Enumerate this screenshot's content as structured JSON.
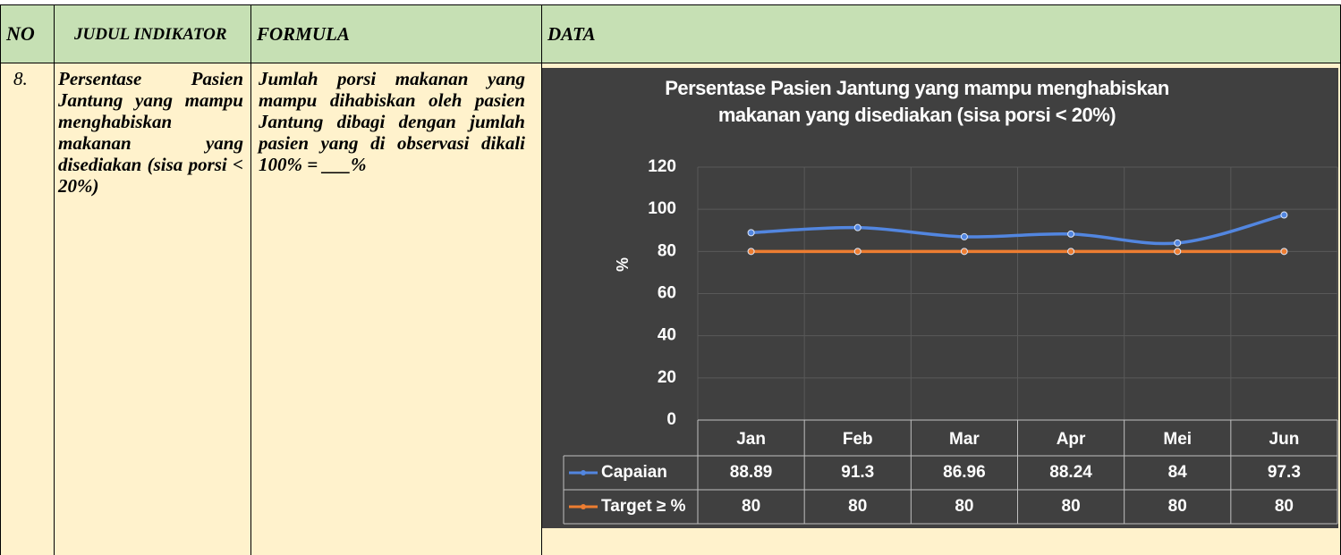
{
  "table": {
    "headers": [
      "NO",
      "JUDUL INDIKATOR",
      "FORMULA",
      "DATA"
    ],
    "rows": [
      [
        "8.",
        "Persentase Pasien Jantung yang mampu menghabiskan makanan yang disediakan (sisa porsi < 20%)",
        "Jumlah porsi makanan yang mampu dihabiskan oleh pasien Jantung dibagi dengan jumlah pasien yang di observasi dikali 100% = ___%"
      ]
    ]
  },
  "chart_data": {
    "type": "line",
    "title": "Persentase Pasien Jantung yang mampu menghabiskan makanan yang disediakan (sisa porsi < 20%)",
    "y_label": "%",
    "categories": [
      "Jan",
      "Feb",
      "Mar",
      "Apr",
      "Mei",
      "Jun"
    ],
    "series": [
      {
        "name": "Capaian",
        "color": "#5286e0",
        "values": [
          88.89,
          91.3,
          86.96,
          88.24,
          84,
          97.3
        ]
      },
      {
        "name": "Target ≥ %",
        "color": "#ed7d31",
        "values": [
          80,
          80,
          80,
          80,
          80,
          80
        ]
      }
    ],
    "ylim": [
      0,
      120
    ],
    "yticks": [
      0,
      20,
      40,
      60,
      80,
      100,
      120
    ],
    "grid": true
  }
}
